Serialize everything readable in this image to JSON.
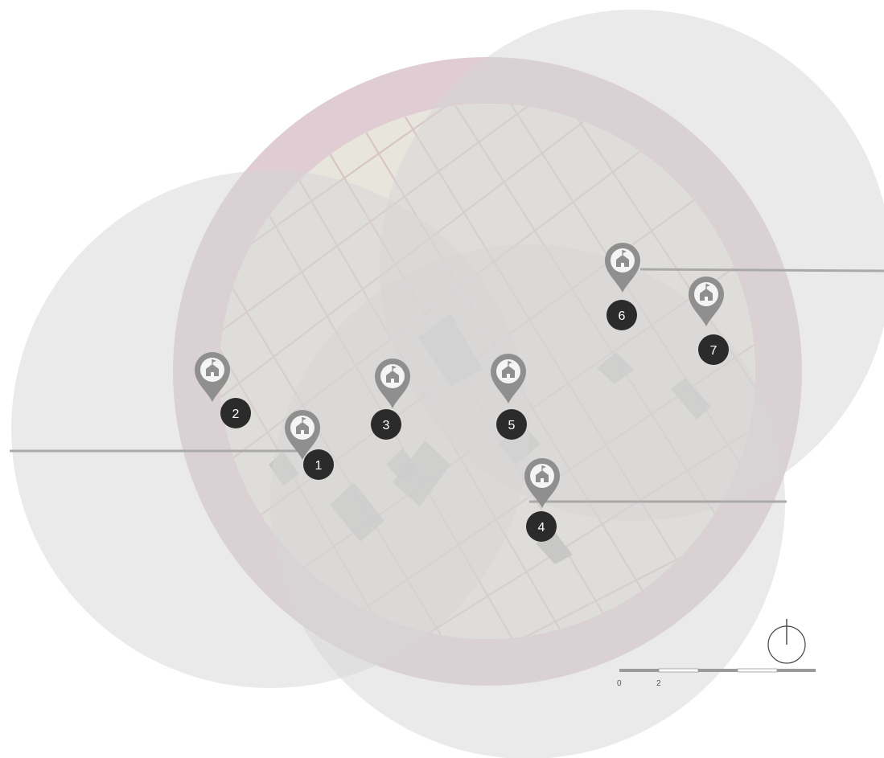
{
  "colors": {
    "background": "#ffffff",
    "map_fill": "#e8e5dd",
    "street": "#d8c6c6",
    "building": "#b3b3b3",
    "ring": "#d4bcc4",
    "coverage_zone": "#d6d6d6",
    "pin": "#8f8f8f",
    "label_badge": "#2b2b2b",
    "leader_line": "#a9a9a9"
  },
  "pins": [
    {
      "id": "1",
      "label": "1",
      "icon": "school-icon"
    },
    {
      "id": "2",
      "label": "2",
      "icon": "school-icon"
    },
    {
      "id": "3",
      "label": "3",
      "icon": "school-icon"
    },
    {
      "id": "4",
      "label": "4",
      "icon": "school-icon"
    },
    {
      "id": "5",
      "label": "5",
      "icon": "school-icon"
    },
    {
      "id": "6",
      "label": "6",
      "icon": "school-icon"
    },
    {
      "id": "7",
      "label": "7",
      "icon": "school-icon"
    }
  ],
  "scale_bar": {
    "labels": [
      "0",
      "2"
    ]
  },
  "north_arrow": {
    "icon": "north-arrow-icon"
  }
}
